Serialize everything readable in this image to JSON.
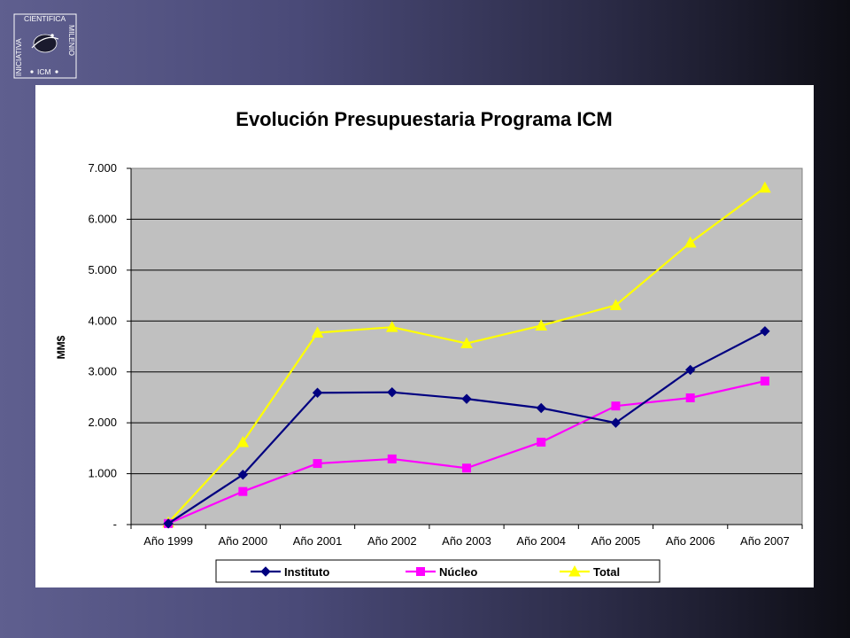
{
  "logo": {
    "top_text": "CIENTIFICA",
    "left_text": "INICIATIVA",
    "right_text": "MILENIO",
    "bottom_text": "ICM"
  },
  "colors": {
    "instituto": "#000080",
    "nucleo": "#ff00ff",
    "total": "#ffff00",
    "plot_bg": "#c0c0c0"
  },
  "chart_data": {
    "type": "line",
    "title": "Evolución Presupuestaria Programa ICM",
    "xlabel": "",
    "ylabel": "MM$",
    "ylim": [
      0,
      7000
    ],
    "yticks": [
      {
        "value": 0,
        "label": "-"
      },
      {
        "value": 1000,
        "label": "1.000"
      },
      {
        "value": 2000,
        "label": "2.000"
      },
      {
        "value": 3000,
        "label": "3.000"
      },
      {
        "value": 4000,
        "label": "4.000"
      },
      {
        "value": 5000,
        "label": "5.000"
      },
      {
        "value": 6000,
        "label": "6.000"
      },
      {
        "value": 7000,
        "label": "7.000"
      }
    ],
    "grid": true,
    "legend_position": "bottom",
    "categories": [
      "Año 1999",
      "Año 2000",
      "Año 2001",
      "Año 2002",
      "Año 2003",
      "Año 2004",
      "Año 2005",
      "Año 2006",
      "Año 2007"
    ],
    "series": [
      {
        "name": "Instituto",
        "marker": "diamond",
        "color": "#000080",
        "values": [
          20,
          980,
          2590,
          2600,
          2470,
          2290,
          2000,
          3040,
          3800
        ]
      },
      {
        "name": "Núcleo",
        "marker": "square",
        "color": "#ff00ff",
        "values": [
          20,
          650,
          1200,
          1290,
          1110,
          1620,
          2330,
          2490,
          2820
        ]
      },
      {
        "name": "Total",
        "marker": "triangle",
        "color": "#ffff00",
        "values": [
          40,
          1620,
          3770,
          3880,
          3560,
          3910,
          4310,
          5540,
          6620
        ]
      }
    ]
  }
}
